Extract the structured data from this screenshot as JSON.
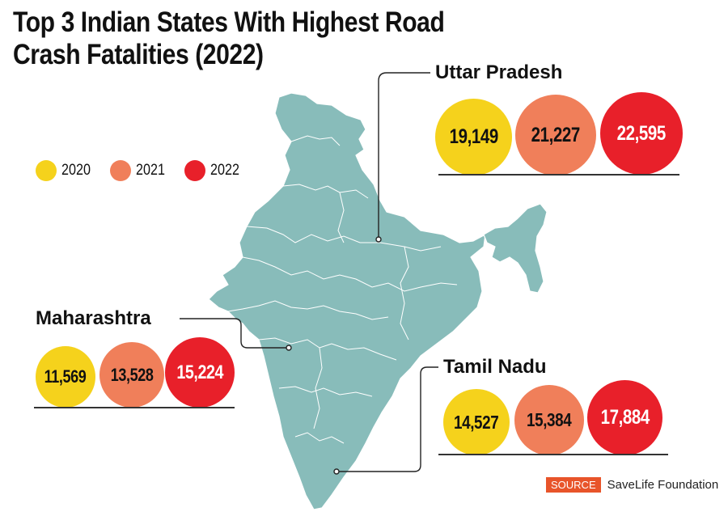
{
  "title_line1": "Top 3 Indian States With Highest Road",
  "title_line2": "Crash Fatalities (2022)",
  "colors": {
    "y2020": "#f5d21c",
    "y2021": "#f07f5a",
    "y2022": "#e8202a",
    "map": "#88bcba",
    "accent": "#e8542a"
  },
  "legend": [
    {
      "label": "2020",
      "color": "#f5d21c"
    },
    {
      "label": "2021",
      "color": "#f07f5a"
    },
    {
      "label": "2022",
      "color": "#e8202a"
    }
  ],
  "chart_data": {
    "type": "bubble-comparison",
    "title": "Top 3 Indian States With Highest Road Crash Fatalities (2022)",
    "series_years": [
      "2020",
      "2021",
      "2022"
    ],
    "states": [
      {
        "name": "Uttar Pradesh",
        "values": [
          19149,
          21227,
          22595
        ],
        "labels": [
          "19,149",
          "21,227",
          "22,595"
        ]
      },
      {
        "name": "Maharashtra",
        "values": [
          11569,
          13528,
          15224
        ],
        "labels": [
          "11,569",
          "13,528",
          "15,224"
        ]
      },
      {
        "name": "Tamil Nadu",
        "values": [
          14527,
          15384,
          17884
        ],
        "labels": [
          "14,527",
          "15,384",
          "17,884"
        ]
      }
    ]
  },
  "source": {
    "tag": "SOURCE",
    "text": "SaveLife Foundation"
  }
}
